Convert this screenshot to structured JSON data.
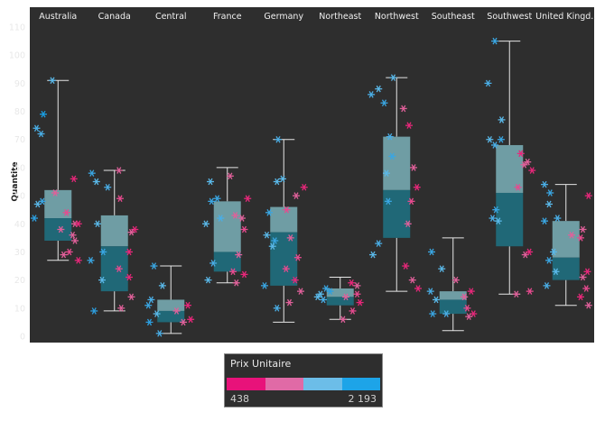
{
  "chart_data": {
    "type": "box",
    "ylabel": "Quantite",
    "ylim": [
      0,
      110
    ],
    "yticks": [
      0,
      10,
      20,
      30,
      40,
      50,
      60,
      70,
      80,
      90,
      100,
      110
    ],
    "grid": false,
    "categories": [
      "Australia",
      "Canada",
      "Central",
      "France",
      "Germany",
      "Northeast",
      "Northwest",
      "Southeast",
      "Southwest",
      "United Kingd.."
    ],
    "boxes": [
      {
        "min": 27,
        "q1": 34,
        "median": 42,
        "q3": 52,
        "max": 91
      },
      {
        "min": 9,
        "q1": 16,
        "median": 32,
        "q3": 43,
        "max": 59
      },
      {
        "min": 1,
        "q1": 5,
        "median": 9,
        "q3": 13,
        "max": 25
      },
      {
        "min": 19,
        "q1": 23,
        "median": 30,
        "q3": 48,
        "max": 60
      },
      {
        "min": 5,
        "q1": 18,
        "median": 37,
        "q3": 46,
        "max": 70
      },
      {
        "min": 6,
        "q1": 11,
        "median": 14,
        "q3": 17,
        "max": 21
      },
      {
        "min": 16,
        "q1": 35,
        "median": 52,
        "q3": 71,
        "max": 92
      },
      {
        "min": 2,
        "q1": 8,
        "median": 13,
        "q3": 16,
        "max": 35
      },
      {
        "min": 15,
        "q1": 32,
        "median": 51,
        "q3": 68,
        "max": 105
      },
      {
        "min": 11,
        "q1": 20,
        "median": 28,
        "q3": 41,
        "max": 54
      }
    ],
    "points": [
      [
        [
          -0.38,
          74,
          "#4aaee6"
        ],
        [
          -0.3,
          72,
          "#4aaee6"
        ],
        [
          -0.26,
          79,
          "#1a9ce0"
        ],
        [
          -0.1,
          91,
          "#5ab8e8"
        ],
        [
          -0.36,
          47,
          "#5ab8e8"
        ],
        [
          -0.28,
          48,
          "#3aa6e2"
        ],
        [
          -0.42,
          42,
          "#2d9fe0"
        ],
        [
          0.28,
          56,
          "#e8277a"
        ],
        [
          0.3,
          40,
          "#e0609a"
        ],
        [
          0.36,
          40,
          "#e8277a"
        ],
        [
          0.3,
          34,
          "#e0609a"
        ],
        [
          0.2,
          30,
          "#e84a8f"
        ],
        [
          0.36,
          27,
          "#e8277a"
        ],
        [
          0.1,
          29,
          "#e0609a"
        ],
        [
          0.26,
          36,
          "#e0609a"
        ],
        [
          -0.05,
          51,
          "#e0609a"
        ],
        [
          0.15,
          44,
          "#e84a8f"
        ],
        [
          0.05,
          38,
          "#e0609a"
        ]
      ],
      [
        [
          -0.4,
          58,
          "#3aa6e2"
        ],
        [
          -0.32,
          55,
          "#5ab8e8"
        ],
        [
          -0.12,
          53,
          "#4aaee6"
        ],
        [
          -0.3,
          40,
          "#5ab8e8"
        ],
        [
          -0.42,
          27,
          "#3aa6e2"
        ],
        [
          -0.2,
          30,
          "#3aa6e2"
        ],
        [
          -0.22,
          20,
          "#5ab8e8"
        ],
        [
          -0.36,
          9,
          "#2d9fe0"
        ],
        [
          0.08,
          59,
          "#e0609a"
        ],
        [
          0.1,
          49,
          "#e84a8f"
        ],
        [
          0.36,
          38,
          "#e8277a"
        ],
        [
          0.3,
          37,
          "#e0609a"
        ],
        [
          0.26,
          30,
          "#e8277a"
        ],
        [
          0.08,
          24,
          "#e84a8f"
        ],
        [
          0.26,
          21,
          "#e8277a"
        ],
        [
          0.3,
          14,
          "#e0609a"
        ],
        [
          0.12,
          10,
          "#e0609a"
        ]
      ],
      [
        [
          -0.3,
          25,
          "#3aa6e2"
        ],
        [
          -0.15,
          18,
          "#5ab8e8"
        ],
        [
          -0.35,
          13,
          "#4aaee6"
        ],
        [
          -0.4,
          11,
          "#3aa6e2"
        ],
        [
          -0.25,
          8,
          "#5ab8e8"
        ],
        [
          -0.38,
          5,
          "#2d9fe0"
        ],
        [
          -0.2,
          1,
          "#4aaee6"
        ],
        [
          0.3,
          11,
          "#e8277a"
        ],
        [
          0.22,
          5,
          "#e0609a"
        ],
        [
          0.35,
          6,
          "#e8277a"
        ],
        [
          0.1,
          9,
          "#e0609a"
        ]
      ],
      [
        [
          -0.3,
          55,
          "#5ab8e8"
        ],
        [
          -0.18,
          49,
          "#3aa6e2"
        ],
        [
          -0.12,
          42,
          "#4aaee6"
        ],
        [
          -0.38,
          40,
          "#5ab8e8"
        ],
        [
          -0.28,
          48,
          "#3aa6e2"
        ],
        [
          -0.25,
          26,
          "#4aaee6"
        ],
        [
          -0.34,
          20,
          "#5ab8e8"
        ],
        [
          0.26,
          42,
          "#e0609a"
        ],
        [
          0.36,
          49,
          "#e8277a"
        ],
        [
          0.14,
          43,
          "#e0609a"
        ],
        [
          0.3,
          38,
          "#e84a8f"
        ],
        [
          0.2,
          29,
          "#e0609a"
        ],
        [
          0.1,
          23,
          "#e84a8f"
        ],
        [
          0.3,
          22,
          "#e8277a"
        ],
        [
          0.16,
          19,
          "#e0609a"
        ],
        [
          0.05,
          57,
          "#e0609a"
        ]
      ],
      [
        [
          -0.1,
          70,
          "#4aaee6"
        ],
        [
          -0.26,
          44,
          "#3aa6e2"
        ],
        [
          -0.12,
          55,
          "#5ab8e8"
        ],
        [
          -0.02,
          56,
          "#5ab8e8"
        ],
        [
          -0.3,
          36,
          "#5ab8e8"
        ],
        [
          -0.16,
          34,
          "#3aa6e2"
        ],
        [
          -0.2,
          32,
          "#5ab8e8"
        ],
        [
          -0.34,
          18,
          "#3aa6e2"
        ],
        [
          -0.12,
          10,
          "#4aaee6"
        ],
        [
          0.36,
          53,
          "#e8277a"
        ],
        [
          0.22,
          50,
          "#e0609a"
        ],
        [
          0.05,
          45,
          "#e84a8f"
        ],
        [
          0.12,
          35,
          "#e0609a"
        ],
        [
          0.25,
          28,
          "#e84a8f"
        ],
        [
          0.2,
          20,
          "#e8277a"
        ],
        [
          0.3,
          16,
          "#e0609a"
        ],
        [
          0.1,
          12,
          "#e0609a"
        ],
        [
          0.04,
          24,
          "#e84a8f"
        ]
      ],
      [
        [
          -0.25,
          17,
          "#3aa6e2"
        ],
        [
          -0.35,
          15,
          "#5ab8e8"
        ],
        [
          -0.3,
          13,
          "#4aaee6"
        ],
        [
          -0.18,
          16,
          "#2d9fe0"
        ],
        [
          -0.4,
          14,
          "#5ab8e8"
        ],
        [
          0.2,
          19,
          "#e8277a"
        ],
        [
          0.3,
          18,
          "#e0609a"
        ],
        [
          0.35,
          12,
          "#e8277a"
        ],
        [
          0.1,
          14,
          "#e0609a"
        ],
        [
          0.22,
          9,
          "#e84a8f"
        ],
        [
          0.05,
          6,
          "#e0609a"
        ],
        [
          0.3,
          15,
          "#e84a8f"
        ]
      ],
      [
        [
          -0.45,
          86,
          "#4aaee6"
        ],
        [
          -0.22,
          83,
          "#3aa6e2"
        ],
        [
          -0.06,
          92,
          "#5ab8e8"
        ],
        [
          -0.32,
          88,
          "#5ab8e8"
        ],
        [
          -0.12,
          71,
          "#4aaee6"
        ],
        [
          -0.08,
          64,
          "#3aa6e2"
        ],
        [
          -0.18,
          58,
          "#5ab8e8"
        ],
        [
          -0.15,
          48,
          "#3aa6e2"
        ],
        [
          -0.32,
          33,
          "#4aaee6"
        ],
        [
          -0.42,
          29,
          "#5ab8e8"
        ],
        [
          0.12,
          81,
          "#e0609a"
        ],
        [
          0.22,
          75,
          "#e8277a"
        ],
        [
          0.3,
          60,
          "#e0609a"
        ],
        [
          0.36,
          53,
          "#e8277a"
        ],
        [
          0.26,
          48,
          "#e84a8f"
        ],
        [
          0.2,
          40,
          "#e0609a"
        ],
        [
          0.16,
          25,
          "#e8277a"
        ],
        [
          0.28,
          20,
          "#e0609a"
        ],
        [
          0.38,
          17,
          "#e8277a"
        ]
      ],
      [
        [
          -0.38,
          30,
          "#3aa6e2"
        ],
        [
          -0.2,
          24,
          "#5ab8e8"
        ],
        [
          -0.4,
          16,
          "#4aaee6"
        ],
        [
          -0.3,
          13,
          "#5ab8e8"
        ],
        [
          -0.36,
          8,
          "#3aa6e2"
        ],
        [
          -0.12,
          8,
          "#4aaee6"
        ],
        [
          0.2,
          14,
          "#e0609a"
        ],
        [
          0.32,
          16,
          "#e8277a"
        ],
        [
          0.25,
          10,
          "#e84a8f"
        ],
        [
          0.36,
          8,
          "#e8277a"
        ],
        [
          0.28,
          7,
          "#e0609a"
        ],
        [
          0.05,
          20,
          "#e0609a"
        ]
      ],
      [
        [
          -0.38,
          90,
          "#4aaee6"
        ],
        [
          -0.26,
          105,
          "#3aa6e2"
        ],
        [
          -0.14,
          77,
          "#5ab8e8"
        ],
        [
          -0.26,
          68,
          "#4aaee6"
        ],
        [
          -0.35,
          70,
          "#5ab8e8"
        ],
        [
          -0.15,
          70,
          "#3aa6e2"
        ],
        [
          -0.24,
          45,
          "#3aa6e2"
        ],
        [
          -0.3,
          42,
          "#4aaee6"
        ],
        [
          -0.2,
          41,
          "#5ab8e8"
        ],
        [
          0.32,
          62,
          "#e0609a"
        ],
        [
          0.2,
          65,
          "#e8277a"
        ],
        [
          0.26,
          61,
          "#e0609a"
        ],
        [
          0.4,
          59,
          "#e8277a"
        ],
        [
          0.15,
          53,
          "#e84a8f"
        ],
        [
          0.28,
          29,
          "#e0609a"
        ],
        [
          0.35,
          30,
          "#e8277a"
        ],
        [
          0.12,
          15,
          "#e0609a"
        ],
        [
          0.36,
          16,
          "#e84a8f"
        ]
      ],
      [
        [
          -0.38,
          54,
          "#4aaee6"
        ],
        [
          -0.28,
          51,
          "#3aa6e2"
        ],
        [
          -0.3,
          47,
          "#5ab8e8"
        ],
        [
          -0.38,
          41,
          "#3aa6e2"
        ],
        [
          -0.15,
          42,
          "#4aaee6"
        ],
        [
          -0.22,
          30,
          "#5ab8e8"
        ],
        [
          -0.3,
          27,
          "#3aa6e2"
        ],
        [
          -0.18,
          23,
          "#5ab8e8"
        ],
        [
          -0.34,
          18,
          "#4aaee6"
        ],
        [
          0.4,
          50,
          "#e8277a"
        ],
        [
          0.3,
          38,
          "#e0609a"
        ],
        [
          0.26,
          35,
          "#e84a8f"
        ],
        [
          0.38,
          23,
          "#e8277a"
        ],
        [
          0.3,
          21,
          "#e0609a"
        ],
        [
          0.36,
          17,
          "#e84a8f"
        ],
        [
          0.26,
          14,
          "#e8277a"
        ],
        [
          0.4,
          11,
          "#e0609a"
        ],
        [
          0.1,
          36,
          "#e0609a"
        ]
      ]
    ]
  },
  "legend": {
    "title": "Prix Unitaire",
    "min_label": "438",
    "max_label": "2 193",
    "swatches": [
      "#e8127a",
      "#e06aa6",
      "#6cbde8",
      "#1da4e8"
    ]
  },
  "colors": {
    "plot_background": "#2e2e2e",
    "box_fill": "#5a9ba3",
    "box_upper_fill": "#7ab0b8",
    "box_lower_fill": "#1f6f80",
    "whisker": "#e6e6e6"
  }
}
